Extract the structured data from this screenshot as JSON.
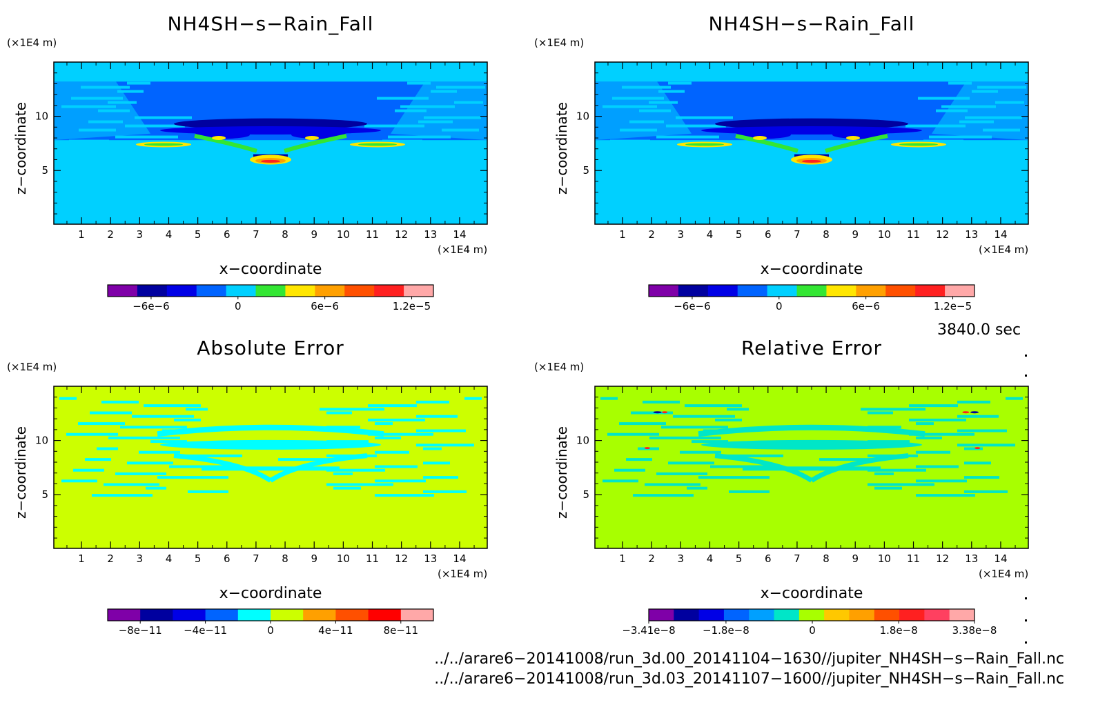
{
  "chart_data": [
    {
      "type": "heatmap",
      "title": "NH4SH−s−Rain_Fall",
      "xlabel": "x−coordinate",
      "ylabel": "z−coordinate",
      "x_unit": "(×1E4 m)",
      "y_unit": "(×1E4 m)",
      "x_ticks": [
        "1",
        "2",
        "3",
        "4",
        "5",
        "6",
        "7",
        "8",
        "9",
        "10",
        "11",
        "12",
        "13",
        "14"
      ],
      "y_ticks": [
        "5",
        "10"
      ],
      "xlim": [
        0.05,
        14.95
      ],
      "ylim": [
        0.05,
        15
      ],
      "colorbar_colors": [
        "#7f00a8",
        "#00009f",
        "#0000e6",
        "#0064ff",
        "#00d0ff",
        "#33e633",
        "#ffe600",
        "#ffa000",
        "#ff5000",
        "#ff2020",
        "#ffa8a8"
      ],
      "colorbar_labels": [
        "−6e−6",
        "0",
        "6e−6",
        "1.2e−5"
      ],
      "colorbar_label_values": [
        -6e-06,
        0,
        6e-06,
        1.2e-05
      ],
      "colorbar_range": [
        -9e-06,
        1.35e-05
      ],
      "field_colors": {
        "background": "#00d0ff",
        "layer": "#0064ff",
        "dark": "#0000e6",
        "strong": "#00009f",
        "pos1": "#33e633",
        "pos2": "#ffe600",
        "peak1": "#ffa000",
        "peak2": "#ff2020"
      }
    },
    {
      "type": "heatmap",
      "title": "NH4SH−s−Rain_Fall",
      "xlabel": "x−coordinate",
      "ylabel": "z−coordinate",
      "x_unit": "(×1E4 m)",
      "y_unit": "(×1E4 m)",
      "x_ticks": [
        "1",
        "2",
        "3",
        "4",
        "5",
        "6",
        "7",
        "8",
        "9",
        "10",
        "11",
        "12",
        "13",
        "14"
      ],
      "y_ticks": [
        "5",
        "10"
      ],
      "xlim": [
        0.05,
        14.95
      ],
      "ylim": [
        0.05,
        15
      ],
      "colorbar_colors": [
        "#7f00a8",
        "#00009f",
        "#0000e6",
        "#0064ff",
        "#00d0ff",
        "#33e633",
        "#ffe600",
        "#ffa000",
        "#ff5000",
        "#ff2020",
        "#ffa8a8"
      ],
      "colorbar_labels": [
        "−6e−6",
        "0",
        "6e−6",
        "1.2e−5"
      ],
      "colorbar_label_values": [
        -6e-06,
        0,
        6e-06,
        1.2e-05
      ],
      "colorbar_range": [
        -9e-06,
        1.35e-05
      ],
      "field_colors": {
        "background": "#00d0ff",
        "layer": "#0064ff",
        "dark": "#0000e6",
        "strong": "#00009f",
        "pos1": "#33e633",
        "pos2": "#ffe600",
        "peak1": "#ffa000",
        "peak2": "#ff2020"
      }
    },
    {
      "type": "heatmap",
      "title": "Absolute Error",
      "xlabel": "x−coordinate",
      "ylabel": "z−coordinate",
      "x_unit": "(×1E4 m)",
      "y_unit": "(×1E4 m)",
      "x_ticks": [
        "1",
        "2",
        "3",
        "4",
        "5",
        "6",
        "7",
        "8",
        "9",
        "10",
        "11",
        "12",
        "13",
        "14"
      ],
      "y_ticks": [
        "5",
        "10"
      ],
      "xlim": [
        0.05,
        14.95
      ],
      "ylim": [
        0.05,
        15
      ],
      "colorbar_colors": [
        "#7f00a8",
        "#00009f",
        "#0000e6",
        "#0064ff",
        "#00ffff",
        "#ccff00",
        "#ffa000",
        "#ff5000",
        "#ff0000",
        "#ffa8a8"
      ],
      "colorbar_labels": [
        "−8e−11",
        "−4e−11",
        "0",
        "4e−11",
        "8e−11"
      ],
      "colorbar_label_values": [
        -8e-11,
        -4e-11,
        0,
        4e-11,
        8e-11
      ],
      "colorbar_range": [
        -1e-10,
        1e-10
      ],
      "field_colors": {
        "background": "#ccff00",
        "anomaly": "#00ffff"
      }
    },
    {
      "type": "heatmap",
      "title": "Relative Error",
      "xlabel": "x−coordinate",
      "ylabel": "z−coordinate",
      "x_unit": "(×1E4 m)",
      "y_unit": "(×1E4 m)",
      "x_ticks": [
        "1",
        "2",
        "3",
        "4",
        "5",
        "6",
        "7",
        "8",
        "9",
        "10",
        "11",
        "12",
        "13",
        "14"
      ],
      "y_ticks": [
        "5",
        "10"
      ],
      "xlim": [
        0.05,
        14.95
      ],
      "ylim": [
        0.05,
        15
      ],
      "colorbar_colors": [
        "#7f00a8",
        "#00009f",
        "#0000e6",
        "#0064ff",
        "#00a0ff",
        "#00e6c8",
        "#a8ff00",
        "#ffc800",
        "#ffa000",
        "#ff5000",
        "#ff2020",
        "#ff4060",
        "#ffa8a8"
      ],
      "colorbar_labels": [
        "−3.41e−8",
        "−1.8e−8",
        "0",
        "1.8e−8",
        "3.38e−8"
      ],
      "colorbar_label_values": [
        -3.41e-08,
        -1.8e-08,
        0,
        1.8e-08,
        3.38e-08
      ],
      "colorbar_range": [
        -3.41e-08,
        3.38e-08
      ],
      "field_colors": {
        "background": "#a8ff00",
        "anomaly": "#00e6c8",
        "neg": "#00009f",
        "pos": "#ff2020"
      }
    }
  ],
  "footer": {
    "time": "3840.0 sec",
    "file_1": "../../arare6−20141008/run_3d.00_20141104−1630//jupiter_NH4SH−s−Rain_Fall.nc",
    "file_2": "../../arare6−20141008/run_3d.03_20141107−1600//jupiter_NH4SH−s−Rain_Fall.nc"
  }
}
